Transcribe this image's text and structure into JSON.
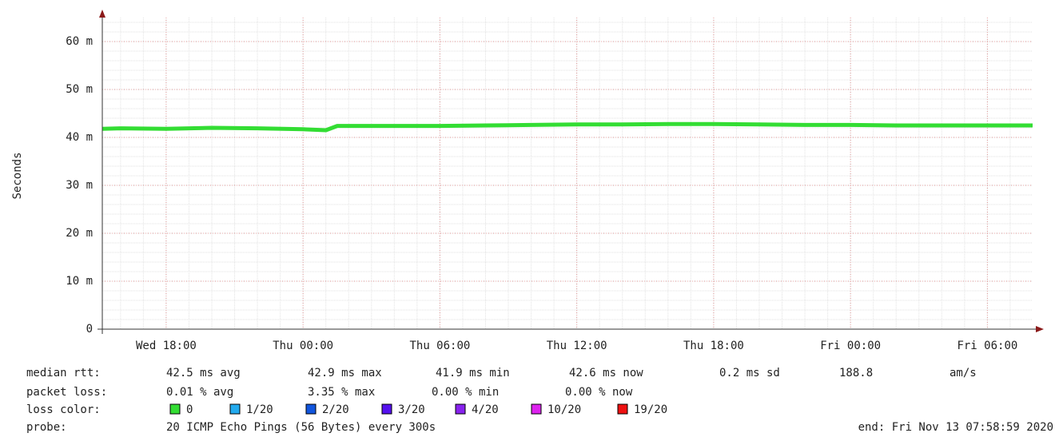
{
  "chart_data": {
    "type": "line",
    "ylabel": "Seconds",
    "xlim": [
      "Wed 15:12",
      "Fri 07:59"
    ],
    "xticks": [
      "Wed 18:00",
      "Thu 00:00",
      "Thu 06:00",
      "Thu 12:00",
      "Thu 18:00",
      "Fri 00:00",
      "Fri 06:00"
    ],
    "ylim": [
      0,
      0.065
    ],
    "yticks": [
      0,
      {
        "value": 0.01,
        "label": "10 m"
      },
      {
        "value": 0.02,
        "label": "20 m"
      },
      {
        "value": 0.03,
        "label": "30 m"
      },
      {
        "value": 0.04,
        "label": "40 m"
      },
      {
        "value": 0.05,
        "label": "50 m"
      },
      {
        "value": 0.06,
        "label": "60 m"
      }
    ],
    "grid": true,
    "series": [
      {
        "name": "median rtt:",
        "color": "#33dd33",
        "x": [
          "Wed 15:12",
          "Wed 16:00",
          "Wed 18:00",
          "Wed 20:00",
          "Wed 22:00",
          "Thu 00:00",
          "Thu 01:00",
          "Thu 01:30",
          "Thu 04:00",
          "Thu 06:00",
          "Thu 08:00",
          "Thu 10:00",
          "Thu 12:00",
          "Thu 14:00",
          "Thu 16:00",
          "Thu 18:00",
          "Thu 20:00",
          "Thu 22:00",
          "Fri 00:00",
          "Fri 02:00",
          "Fri 04:00",
          "Fri 06:00",
          "Fri 07:59"
        ],
        "values": [
          0.0418,
          0.0419,
          0.0418,
          0.042,
          0.0419,
          0.0417,
          0.0415,
          0.0424,
          0.0424,
          0.0424,
          0.0425,
          0.0426,
          0.0427,
          0.0427,
          0.0428,
          0.0428,
          0.0427,
          0.0426,
          0.0426,
          0.0425,
          0.0425,
          0.0425,
          0.0425
        ]
      }
    ]
  },
  "stats": [
    {
      "label": "median rtt:",
      "items": [
        "42.5 ms avg",
        "42.9 ms max",
        "41.9 ms min",
        "42.6 ms now",
        "0.2 ms sd",
        "188.8",
        "am/s"
      ]
    },
    {
      "label": "packet loss:",
      "items": [
        "0.01 % avg",
        "3.35 % max",
        "0.00 % min",
        "0.00 % now"
      ]
    }
  ],
  "loss_color": {
    "label": "loss color:",
    "items": [
      {
        "label": "0",
        "color": "#33dd33"
      },
      {
        "label": "1/20",
        "color": "#22aaee"
      },
      {
        "label": "2/20",
        "color": "#1155dd"
      },
      {
        "label": "3/20",
        "color": "#5511ee"
      },
      {
        "label": "4/20",
        "color": "#8822ee"
      },
      {
        "label": "10/20",
        "color": "#dd22ee"
      },
      {
        "label": "19/20",
        "color": "#ee1111"
      }
    ]
  },
  "probe": {
    "label": "probe:",
    "text": "20 ICMP Echo Pings (56 Bytes) every 300s",
    "end": "end: Fri Nov 13 07:58:59 2020"
  }
}
